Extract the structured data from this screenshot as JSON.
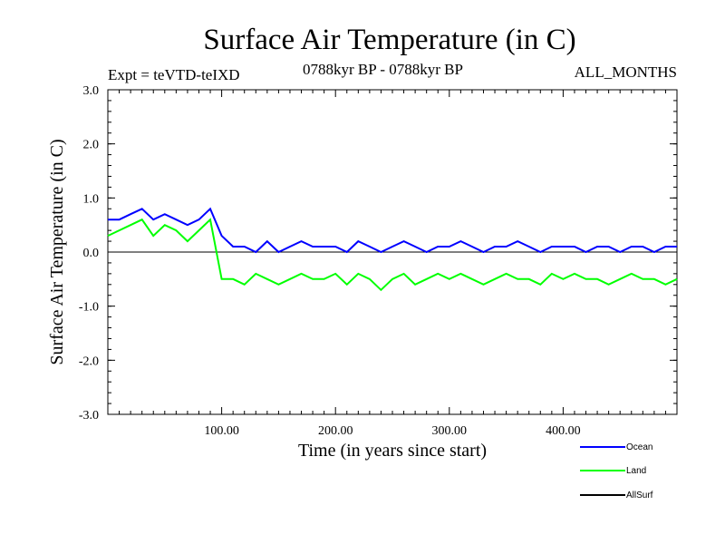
{
  "header": {
    "title": "Surface Air Temperature (in C)",
    "expt": "Expt = teVTD-teIXD",
    "period": "0788kyr BP - 0788kyr BP",
    "months": "ALL_MONTHS"
  },
  "chart_data": {
    "type": "line",
    "title": "Surface Air Temperature (in C)",
    "xlabel": "Time (in years since start)",
    "ylabel": "Surface Air Temperature (in C)",
    "xlim": [
      0,
      500
    ],
    "ylim": [
      -3.0,
      3.0
    ],
    "x_ticks": [
      "100.00",
      "200.00",
      "300.00",
      "400.00"
    ],
    "y_ticks": [
      "3.0",
      "2.0",
      "1.0",
      "0.0",
      "-1.0",
      "-2.0",
      "-3.0"
    ],
    "grid": false,
    "legend_position": "bottom-right, outside plot",
    "series": [
      {
        "name": "Ocean",
        "color": "#0000ff",
        "x": [
          0,
          10,
          20,
          30,
          40,
          50,
          60,
          70,
          80,
          90,
          100,
          110,
          120,
          130,
          140,
          150,
          160,
          170,
          180,
          190,
          200,
          210,
          220,
          230,
          240,
          250,
          260,
          270,
          280,
          290,
          300,
          310,
          320,
          330,
          340,
          350,
          360,
          370,
          380,
          390,
          400,
          410,
          420,
          430,
          440,
          450,
          460,
          470,
          480,
          490,
          500
        ],
        "values": [
          0.6,
          0.6,
          0.7,
          0.8,
          0.6,
          0.7,
          0.6,
          0.5,
          0.6,
          0.8,
          0.3,
          0.1,
          0.1,
          0.0,
          0.2,
          0.0,
          0.1,
          0.2,
          0.1,
          0.1,
          0.1,
          0.0,
          0.2,
          0.1,
          0.0,
          0.1,
          0.2,
          0.1,
          0.0,
          0.1,
          0.1,
          0.2,
          0.1,
          0.0,
          0.1,
          0.1,
          0.2,
          0.1,
          0.0,
          0.1,
          0.1,
          0.1,
          0.0,
          0.1,
          0.1,
          0.0,
          0.1,
          0.1,
          0.0,
          0.1,
          0.1
        ]
      },
      {
        "name": "Land",
        "color": "#00ff00",
        "x": [
          0,
          10,
          20,
          30,
          40,
          50,
          60,
          70,
          80,
          90,
          100,
          110,
          120,
          130,
          140,
          150,
          160,
          170,
          180,
          190,
          200,
          210,
          220,
          230,
          240,
          250,
          260,
          270,
          280,
          290,
          300,
          310,
          320,
          330,
          340,
          350,
          360,
          370,
          380,
          390,
          400,
          410,
          420,
          430,
          440,
          450,
          460,
          470,
          480,
          490,
          500
        ],
        "values": [
          0.3,
          0.4,
          0.5,
          0.6,
          0.3,
          0.5,
          0.4,
          0.2,
          0.4,
          0.6,
          -0.5,
          -0.5,
          -0.6,
          -0.4,
          -0.5,
          -0.6,
          -0.5,
          -0.4,
          -0.5,
          -0.5,
          -0.4,
          -0.6,
          -0.4,
          -0.5,
          -0.7,
          -0.5,
          -0.4,
          -0.6,
          -0.5,
          -0.4,
          -0.5,
          -0.4,
          -0.5,
          -0.6,
          -0.5,
          -0.4,
          -0.5,
          -0.5,
          -0.6,
          -0.4,
          -0.5,
          -0.4,
          -0.5,
          -0.5,
          -0.6,
          -0.5,
          -0.4,
          -0.5,
          -0.5,
          -0.6,
          -0.5
        ]
      },
      {
        "name": "AllSurf",
        "color": "#000000",
        "x": [],
        "values": []
      }
    ]
  }
}
